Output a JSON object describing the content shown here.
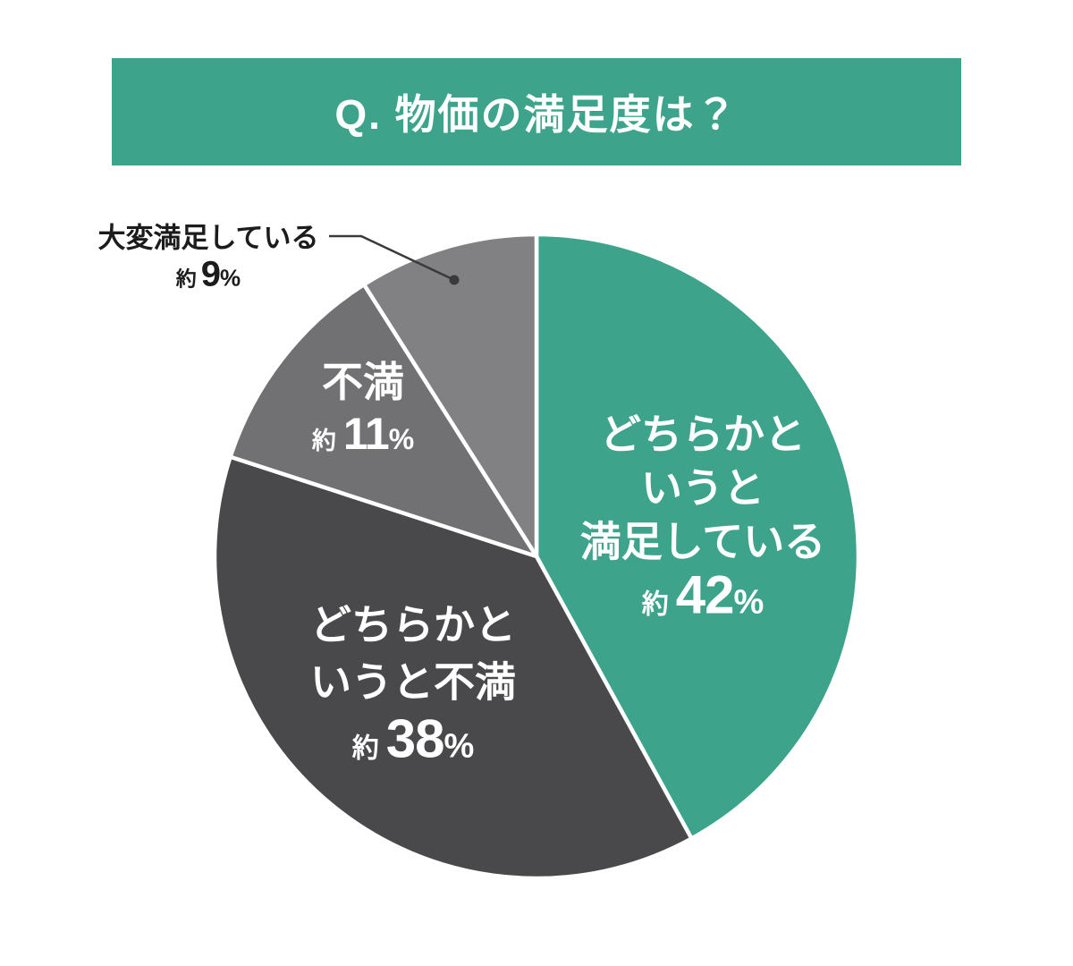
{
  "header": {
    "title": "Q. 物価の満足度は？",
    "banner_color": "#3DA48B",
    "title_color": "#FFFFFF"
  },
  "chart_data": {
    "type": "pie",
    "title": "Q. 物価の満足度は？",
    "start_angle_deg": 0,
    "direction": "clockwise",
    "legend": "none",
    "background": "#FFFFFF",
    "separator_color": "#FFFFFF",
    "callout_color": "#3A3A3A",
    "slices": [
      {
        "name": "どちらかというと満足している",
        "label_lines": [
          "どちらかと",
          "いうと",
          "満足している"
        ],
        "approx": "約",
        "value": 42,
        "unit": "%",
        "color": "#3DA48B",
        "label_color": "#FFFFFF",
        "label_position": "inside"
      },
      {
        "name": "どちらかというと不満",
        "label_lines": [
          "どちらかと",
          "いうと不満"
        ],
        "approx": "約",
        "value": 38,
        "unit": "%",
        "color": "#49494C",
        "label_color": "#FFFFFF",
        "label_position": "inside"
      },
      {
        "name": "不満",
        "label_lines": [
          "不満"
        ],
        "approx": "約",
        "value": 11,
        "unit": "%",
        "color": "#717174",
        "label_color": "#FFFFFF",
        "label_position": "inside"
      },
      {
        "name": "大変満足している",
        "label_lines": [
          "大変満足している"
        ],
        "approx": "約",
        "value": 9,
        "unit": "%",
        "color": "#818184",
        "label_color": "#1C1C1C",
        "label_position": "callout-outside"
      }
    ]
  }
}
